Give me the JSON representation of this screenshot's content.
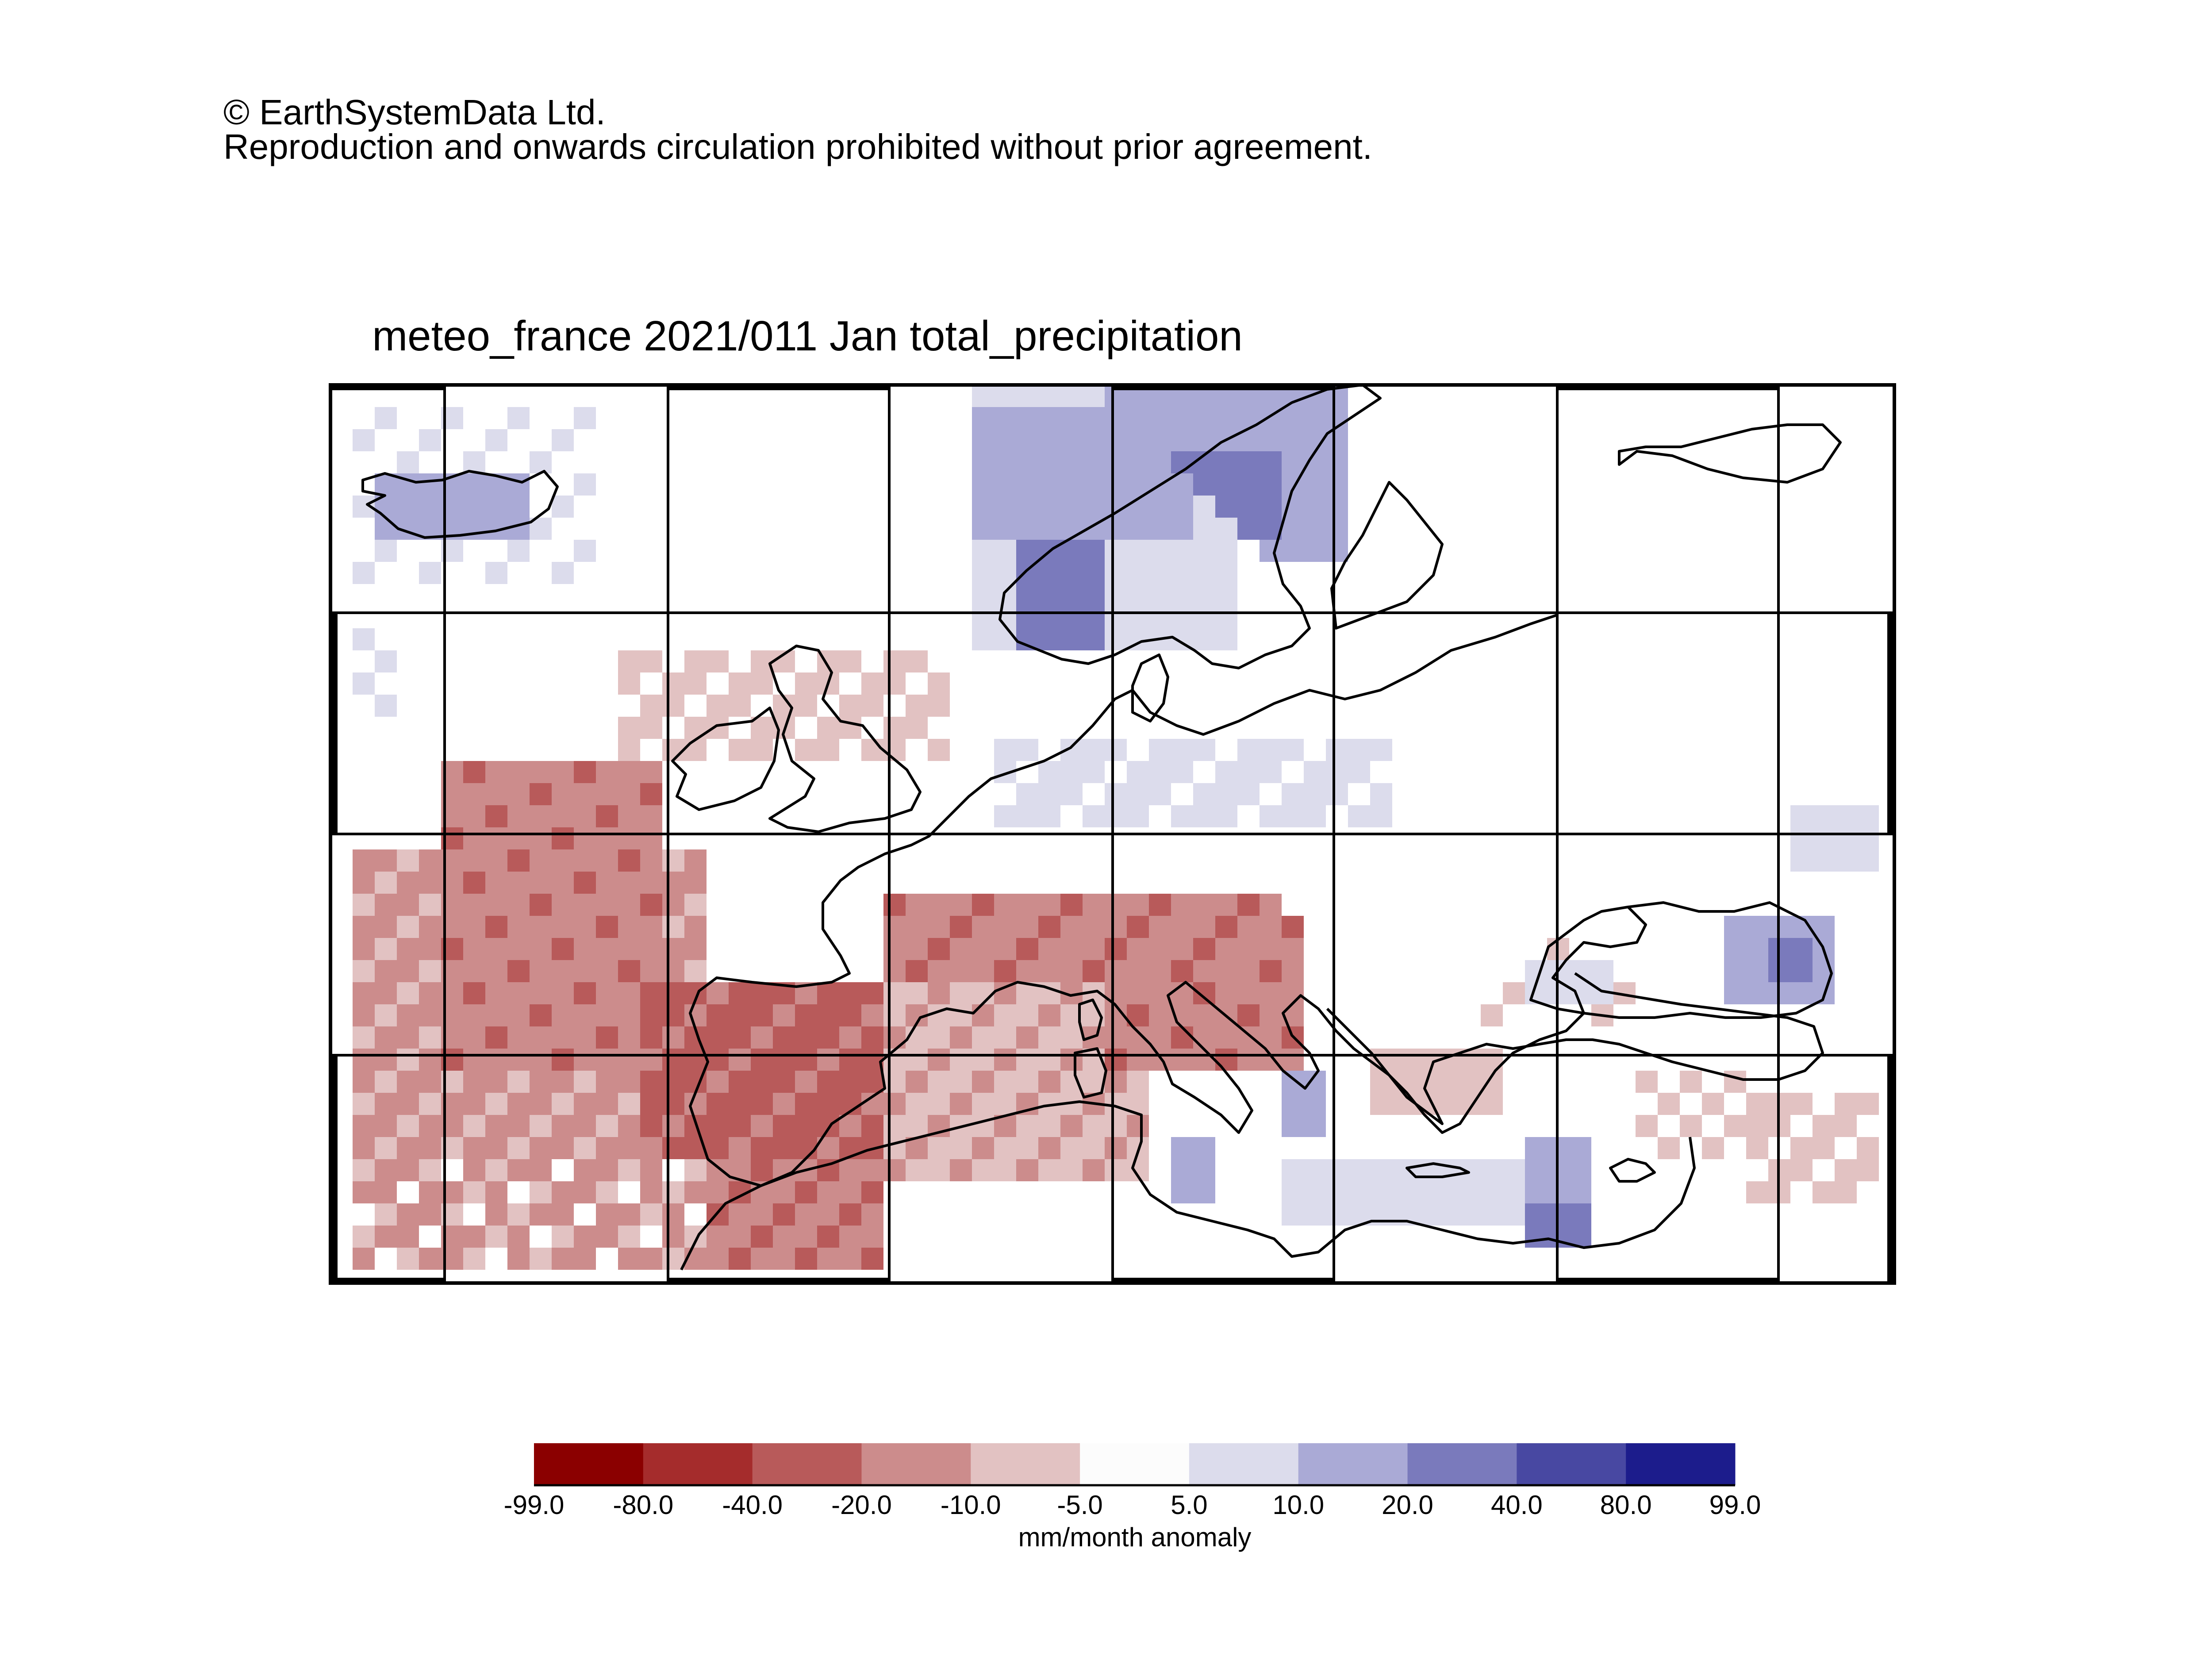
{
  "copyright": {
    "line1": "© EarthSystemData Ltd.",
    "line2": "Reproduction and onwards circulation prohibited without prior agreement."
  },
  "map": {
    "title": "meteo_france 2021/011 Jan total_precipitation",
    "variable": "total_precipitation",
    "month": "Jan",
    "region": "Europe",
    "grid_lines": true,
    "coastlines": true
  },
  "colorbar": {
    "labels": [
      "-99.0",
      "-80.0",
      "-40.0",
      "-20.0",
      "-10.0",
      "-5.0",
      "5.0",
      "10.0",
      "20.0",
      "40.0",
      "80.0",
      "99.0"
    ],
    "colors": [
      "#8b0000",
      "#a52c2c",
      "#b85a5a",
      "#cc8c8c",
      "#e2c2c2",
      "#fcfcfc",
      "#dcdcec",
      "#aaaad6",
      "#7a7abc",
      "#4848a2",
      "#1c1c8c"
    ],
    "unit": "mm/month anomaly"
  }
}
